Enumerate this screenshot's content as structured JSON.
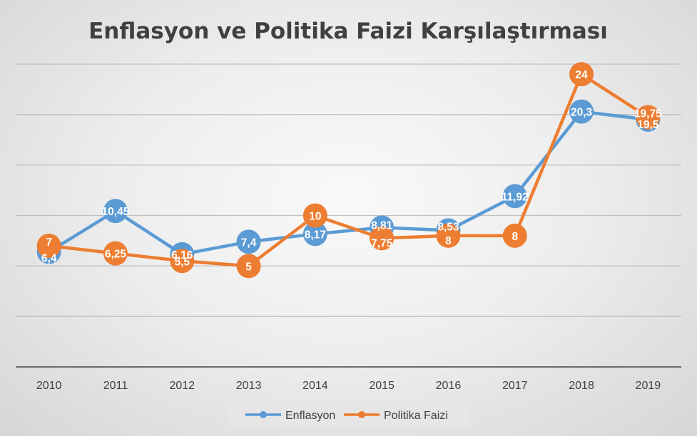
{
  "chart_data": {
    "type": "line",
    "title": "Enflasyon ve Politika Faizi Karşılaştırması",
    "xlabel": "",
    "ylabel": "",
    "categories": [
      "2010",
      "2011",
      "2012",
      "2013",
      "2014",
      "2015",
      "2016",
      "2017",
      "2018",
      "2019"
    ],
    "ylim": [
      -5,
      25
    ],
    "y_gridlines": [
      0,
      5,
      10,
      15,
      20,
      25
    ],
    "y_tick_labels_shown": false,
    "grid": true,
    "legend_position": "bottom",
    "series": [
      {
        "name": "Enflasyon",
        "color": "#5b9bd5",
        "values": [
          6.4,
          10.45,
          6.16,
          7.4,
          8.17,
          8.81,
          8.53,
          11.92,
          20.3,
          19.5
        ],
        "labels": [
          "6,4",
          "10,45",
          "6,16",
          "7,4",
          "8,17",
          "8,81",
          "8,53",
          "11,92",
          "20,3",
          "19,5"
        ]
      },
      {
        "name": "Politika Faizi",
        "color": "#ed7d31",
        "values": [
          7,
          6.25,
          5.5,
          5,
          10,
          7.75,
          8,
          8,
          24,
          19.75
        ],
        "labels": [
          "7",
          "6,25",
          "5,5",
          "5",
          "10",
          "7,75",
          "8",
          "8",
          "24",
          "19,75"
        ]
      }
    ]
  }
}
